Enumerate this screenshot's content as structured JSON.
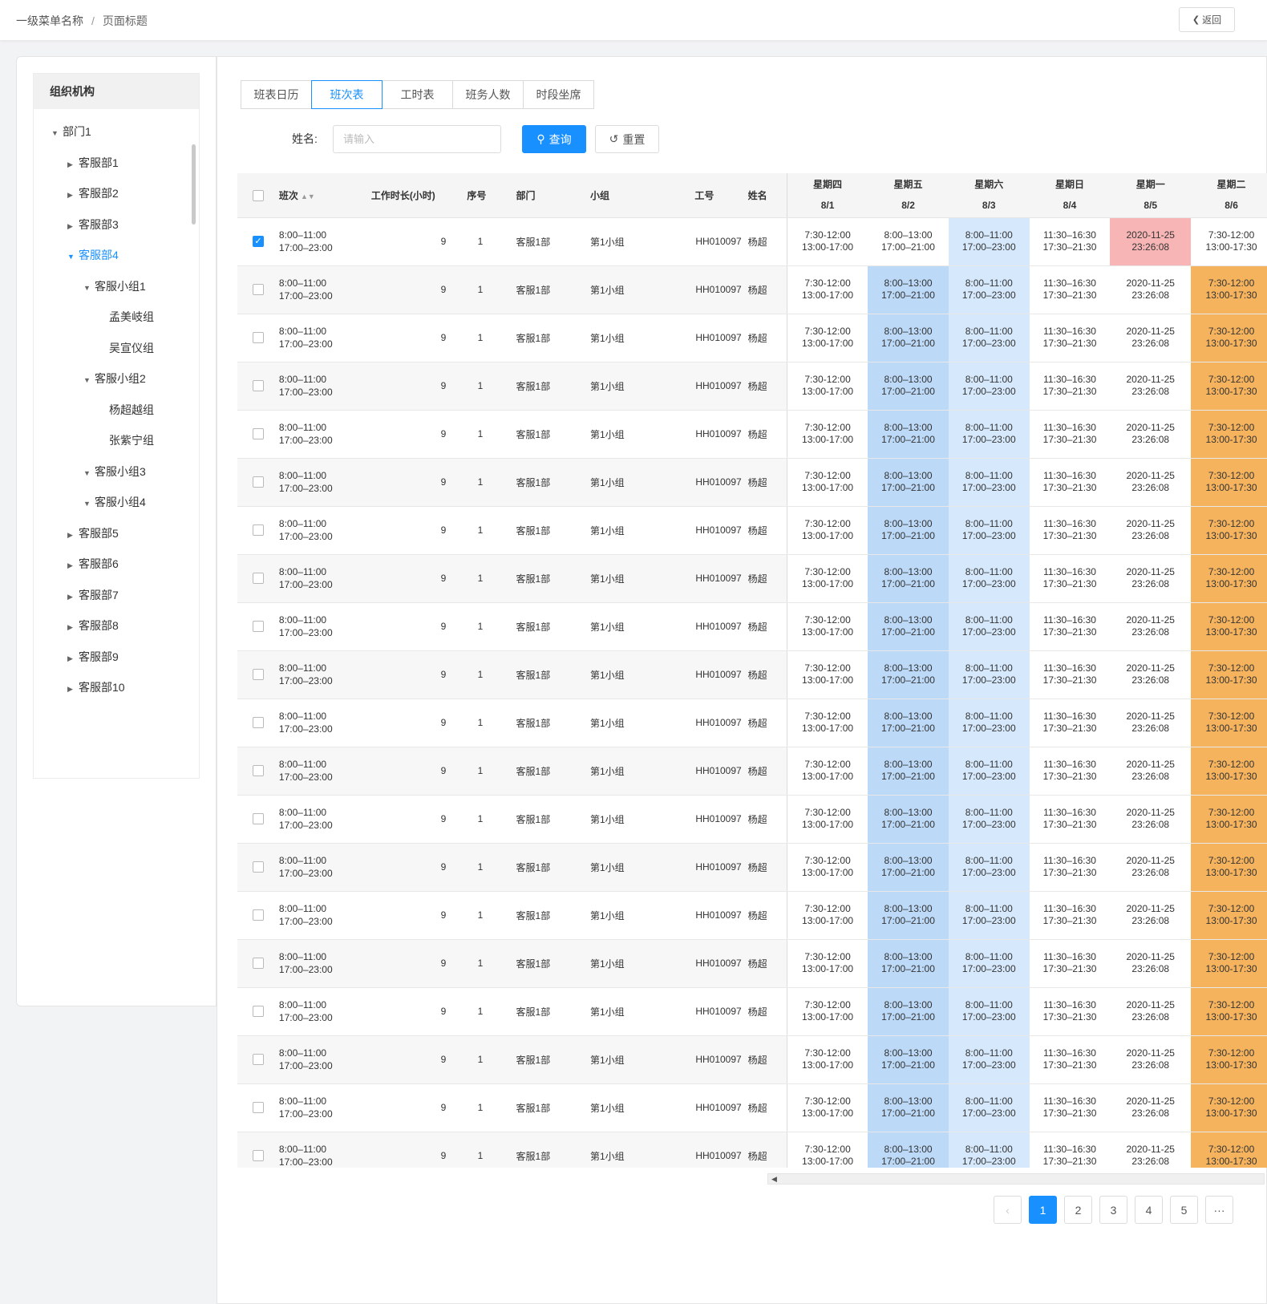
{
  "breadcrumb": {
    "level1": "一级菜单名称",
    "separator": "/",
    "current": "页面标题"
  },
  "back_button": {
    "label": "返回",
    "icon": "chevron-left-icon"
  },
  "tree": {
    "title": "组织机构",
    "nodes": [
      {
        "label": "部门1",
        "state": "expanded"
      },
      {
        "label": "客服部1",
        "state": "collapsed"
      },
      {
        "label": "客服部2",
        "state": "collapsed"
      },
      {
        "label": "客服部3",
        "state": "collapsed"
      },
      {
        "label": "客服部4",
        "state": "expanded",
        "active": true
      },
      {
        "label": "客服小组1",
        "state": "expanded"
      },
      {
        "label": "孟美岐组",
        "state": "leaf"
      },
      {
        "label": "吴宣仪组",
        "state": "leaf"
      },
      {
        "label": "客服小组2",
        "state": "expanded"
      },
      {
        "label": "杨超越组",
        "state": "leaf"
      },
      {
        "label": "张紫宁组",
        "state": "leaf"
      },
      {
        "label": "客服小组3",
        "state": "expanded"
      },
      {
        "label": "客服小组4",
        "state": "expanded"
      },
      {
        "label": "客服部5",
        "state": "collapsed"
      },
      {
        "label": "客服部6",
        "state": "collapsed"
      },
      {
        "label": "客服部7",
        "state": "collapsed"
      },
      {
        "label": "客服部8",
        "state": "collapsed"
      },
      {
        "label": "客服部9",
        "state": "collapsed"
      },
      {
        "label": "客服部10",
        "state": "collapsed"
      }
    ]
  },
  "tabs": [
    "班表日历",
    "班次表",
    "工时表",
    "班务人数",
    "时段坐席"
  ],
  "active_tab": "班次表",
  "filter": {
    "label": "姓名:",
    "placeholder": "请输入",
    "query_label": "查询",
    "reset_label": "重置"
  },
  "table": {
    "headers": {
      "shift": "班次",
      "hours": "工作时长(小时)",
      "seq": "序号",
      "dept": "部门",
      "group": "小组",
      "empno": "工号",
      "name": "姓名"
    },
    "days": [
      {
        "weekday": "星期四",
        "date": "8/1"
      },
      {
        "weekday": "星期五",
        "date": "8/2"
      },
      {
        "weekday": "星期六",
        "date": "8/3"
      },
      {
        "weekday": "星期日",
        "date": "8/4"
      },
      {
        "weekday": "星期一",
        "date": "8/5"
      },
      {
        "weekday": "星期二",
        "date": "8/6"
      }
    ],
    "row_template": {
      "shift": [
        "8:00–11:00",
        "17:00–23:00"
      ],
      "hours": "9",
      "seq": "1",
      "dept": "客服1部",
      "group": "第1小组",
      "empno": "HH010097",
      "name": "杨超",
      "cells": [
        [
          "7:30-12:00",
          "13:00-17:00"
        ],
        [
          "8:00–13:00",
          "17:00–21:00"
        ],
        [
          "8:00–11:00",
          "17:00–23:00"
        ],
        [
          "11:30–16:30",
          "17:30–21:30"
        ],
        [
          "2020-11-25",
          "23:26:08"
        ],
        [
          "7:30-12:00",
          "13:00-17:30"
        ]
      ]
    },
    "row_count": 20,
    "first_row_checked": true,
    "first_row_colors": [
      "#ffffff",
      "#ffffff",
      "#d6e9fc",
      "#ffffff",
      "#f7b6b5",
      "#ffffff"
    ],
    "other_row_colors": [
      "#ffffff",
      "#bcd9f7",
      "#d6e9fc",
      "#ffffff",
      "#ffffff",
      "#f5b35e"
    ]
  },
  "pagination": {
    "prev_icon": "chevron-left-icon",
    "pages": [
      "1",
      "2",
      "3",
      "4",
      "5"
    ],
    "current": "1",
    "ellipsis": "···"
  },
  "colors": {
    "accent": "#1890ff"
  }
}
